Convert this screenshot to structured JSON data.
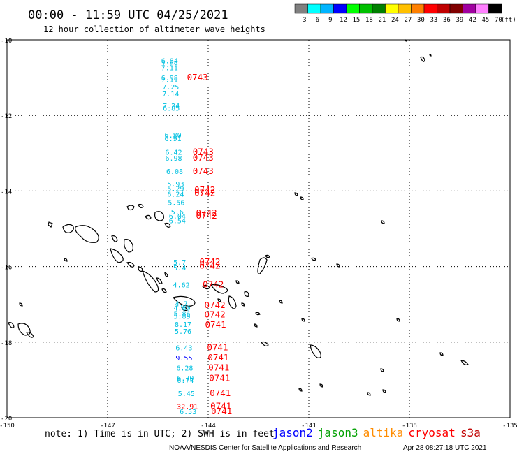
{
  "header": {
    "time_range": "00:00 - 11:59 UTC 04/25/2021",
    "subtitle": "12 hour collection of altimeter wave heights"
  },
  "colorbar": {
    "unit": "(ft)",
    "labels": [
      "3",
      "6",
      "9",
      "12",
      "15",
      "18",
      "21",
      "24",
      "27",
      "30",
      "33",
      "36",
      "39",
      "42",
      "45",
      "70"
    ],
    "colors": [
      "#808080",
      "#00ffff",
      "#00b4ff",
      "#0000ff",
      "#00ff00",
      "#00c000",
      "#008000",
      "#ffff00",
      "#ffc000",
      "#ff8000",
      "#ff0000",
      "#c00000",
      "#800000",
      "#a000a0",
      "#ff80ff",
      "#000000"
    ]
  },
  "axes": {
    "lat_labels": [
      "-10",
      "-12",
      "-14",
      "-16",
      "-18",
      "-20"
    ],
    "lon_labels": [
      "-150",
      "-147",
      "-144",
      "-141",
      "-138",
      "-135"
    ]
  },
  "observations": {
    "wave_heights": [
      {
        "v": "6.84",
        "lon": -145.15,
        "lat": -10.62,
        "c": "#00c0e0"
      },
      {
        "v": "7.09",
        "lon": -145.15,
        "lat": -10.71,
        "c": "#00c0e0"
      },
      {
        "v": "7.11",
        "lon": -145.15,
        "lat": -10.8,
        "c": "#00c0e0"
      },
      {
        "v": "6.98",
        "lon": -145.15,
        "lat": -11.07,
        "c": "#00c0e0"
      },
      {
        "v": "7.11",
        "lon": -145.15,
        "lat": -11.12,
        "c": "#00c0e0"
      },
      {
        "v": "7.25",
        "lon": -145.12,
        "lat": -11.31,
        "c": "#00c0e0"
      },
      {
        "v": "7.14",
        "lon": -145.12,
        "lat": -11.5,
        "c": "#00c0e0"
      },
      {
        "v": "7.24",
        "lon": -145.1,
        "lat": -11.81,
        "c": "#00c0e0"
      },
      {
        "v": "6.85",
        "lon": -145.1,
        "lat": -11.88,
        "c": "#00c0e0"
      },
      {
        "v": "6.80",
        "lon": -145.05,
        "lat": -12.59,
        "c": "#00c0e0"
      },
      {
        "v": "6.91",
        "lon": -145.05,
        "lat": -12.68,
        "c": "#00c0e0"
      },
      {
        "v": "6.42",
        "lon": -145.03,
        "lat": -13.04,
        "c": "#00c0e0"
      },
      {
        "v": "6.98",
        "lon": -145.03,
        "lat": -13.2,
        "c": "#00c0e0"
      },
      {
        "v": "6.08",
        "lon": -145.0,
        "lat": -13.55,
        "c": "#00c0e0"
      },
      {
        "v": "5.93",
        "lon": -144.97,
        "lat": -13.88,
        "c": "#00c0e0"
      },
      {
        "v": "5.29",
        "lon": -144.97,
        "lat": -14.0,
        "c": "#00c0e0"
      },
      {
        "v": "6.24",
        "lon": -144.97,
        "lat": -14.15,
        "c": "#00c0e0"
      },
      {
        "v": "5.56",
        "lon": -144.95,
        "lat": -14.37,
        "c": "#00c0e0"
      },
      {
        "v": "5.6",
        "lon": -144.92,
        "lat": -14.62,
        "c": "#00c0e0"
      },
      {
        "v": "6.04",
        "lon": -144.92,
        "lat": -14.73,
        "c": "#00c0e0"
      },
      {
        "v": "6.54",
        "lon": -144.92,
        "lat": -14.85,
        "c": "#00c0e0"
      },
      {
        "v": "5.7",
        "lon": -144.85,
        "lat": -15.95,
        "c": "#00c0e0"
      },
      {
        "v": "5.4",
        "lon": -144.85,
        "lat": -16.1,
        "c": "#00c0e0"
      },
      {
        "v": "4.62",
        "lon": -144.8,
        "lat": -16.55,
        "c": "#00c0e0"
      },
      {
        "v": "4.7",
        "lon": -144.8,
        "lat": -17.05,
        "c": "#00c0e0"
      },
      {
        "v": "4.60",
        "lon": -144.78,
        "lat": -17.16,
        "c": "#00c0e0"
      },
      {
        "v": "5.86",
        "lon": -144.78,
        "lat": -17.31,
        "c": "#00c0e0"
      },
      {
        "v": "5.89",
        "lon": -144.78,
        "lat": -17.38,
        "c": "#00c0e0"
      },
      {
        "v": "8.17",
        "lon": -144.75,
        "lat": -17.6,
        "c": "#00c0e0"
      },
      {
        "v": "5.76",
        "lon": -144.75,
        "lat": -17.78,
        "c": "#00c0e0"
      },
      {
        "v": "6.43",
        "lon": -144.72,
        "lat": -18.22,
        "c": "#00c0e0"
      },
      {
        "v": "9.55",
        "lon": -144.72,
        "lat": -18.48,
        "c": "#0000ff"
      },
      {
        "v": "6.28",
        "lon": -144.7,
        "lat": -18.75,
        "c": "#00c0e0"
      },
      {
        "v": "6.70",
        "lon": -144.68,
        "lat": -19.02,
        "c": "#00c0e0"
      },
      {
        "v": "6.74",
        "lon": -144.68,
        "lat": -19.08,
        "c": "#00c0e0"
      },
      {
        "v": "5.45",
        "lon": -144.65,
        "lat": -19.43,
        "c": "#00c0e0"
      },
      {
        "v": "32.91",
        "lon": -144.62,
        "lat": -19.77,
        "c": "#ff0000"
      },
      {
        "v": "6.53",
        "lon": -144.6,
        "lat": -19.91,
        "c": "#00c0e0"
      }
    ],
    "pass_ids": [
      {
        "v": "0743",
        "lon": -144.32,
        "lat": -11.07,
        "c": "#ff0000"
      },
      {
        "v": "0743",
        "lon": -144.15,
        "lat": -13.04,
        "c": "#ff0000"
      },
      {
        "v": "0743",
        "lon": -144.15,
        "lat": -13.2,
        "c": "#ff0000"
      },
      {
        "v": "0743",
        "lon": -144.15,
        "lat": -13.55,
        "c": "#ff0000"
      },
      {
        "v": "0742",
        "lon": -144.1,
        "lat": -14.05,
        "c": "#ff0000"
      },
      {
        "v": "0742",
        "lon": -144.1,
        "lat": -14.13,
        "c": "#ff0000"
      },
      {
        "v": "0742",
        "lon": -144.05,
        "lat": -14.66,
        "c": "#ff0000"
      },
      {
        "v": "0742",
        "lon": -144.05,
        "lat": -14.73,
        "c": "#ff0000"
      },
      {
        "v": "0742",
        "lon": -143.95,
        "lat": -15.95,
        "c": "#ff0000"
      },
      {
        "v": "0742",
        "lon": -143.95,
        "lat": -16.05,
        "c": "#ff0000"
      },
      {
        "v": "0742",
        "lon": -143.85,
        "lat": -16.55,
        "c": "#ff0000"
      },
      {
        "v": "0742",
        "lon": -143.8,
        "lat": -17.1,
        "c": "#ff0000"
      },
      {
        "v": "0742",
        "lon": -143.8,
        "lat": -17.35,
        "c": "#ff0000"
      },
      {
        "v": "0741",
        "lon": -143.78,
        "lat": -17.62,
        "c": "#ff0000"
      },
      {
        "v": "0741",
        "lon": -143.72,
        "lat": -18.22,
        "c": "#ff0000"
      },
      {
        "v": "0741",
        "lon": -143.7,
        "lat": -18.48,
        "c": "#ff0000"
      },
      {
        "v": "0741",
        "lon": -143.68,
        "lat": -18.75,
        "c": "#ff0000"
      },
      {
        "v": "0741",
        "lon": -143.66,
        "lat": -19.03,
        "c": "#ff0000"
      },
      {
        "v": "0741",
        "lon": -143.64,
        "lat": -19.43,
        "c": "#ff0000"
      },
      {
        "v": "0741",
        "lon": -143.62,
        "lat": -19.77,
        "c": "#ff0000"
      },
      {
        "v": "0741",
        "lon": -143.6,
        "lat": -19.91,
        "c": "#ff0000"
      }
    ]
  },
  "footer": {
    "note": "note: 1) Time is in UTC; 2) SWH is in feet",
    "satellites": [
      {
        "name": "jason2",
        "color": "#0000ff"
      },
      {
        "name": "jason3",
        "color": "#00a000"
      },
      {
        "name": "altika",
        "color": "#ff8c00"
      },
      {
        "name": "cryosat",
        "color": "#ff0000"
      },
      {
        "name": "s3a",
        "color": "#c00000"
      }
    ],
    "credit": "NOAA/NESDIS Center for Satellite Applications and Research",
    "generated": "Apr 28 08:27:18 UTC 2021"
  }
}
